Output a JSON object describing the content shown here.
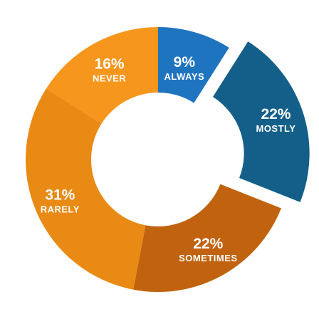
{
  "chart_data": {
    "type": "pie",
    "donut": true,
    "slices": [
      {
        "value_label": "9%",
        "category": "ALWAYS",
        "value": 9,
        "color": "#1f74c0"
      },
      {
        "value_label": "22%",
        "category": "MOSTLY",
        "value": 22,
        "color": "#135f89"
      },
      {
        "value_label": "22%",
        "category": "SOMETIMES",
        "value": 22,
        "color": "#c0620e"
      },
      {
        "value_label": "31%",
        "category": "RARELY",
        "value": 31,
        "color": "#e98a14"
      },
      {
        "value_label": "16%",
        "category": "NEVER",
        "value": 16,
        "color": "#f6961d"
      }
    ]
  }
}
